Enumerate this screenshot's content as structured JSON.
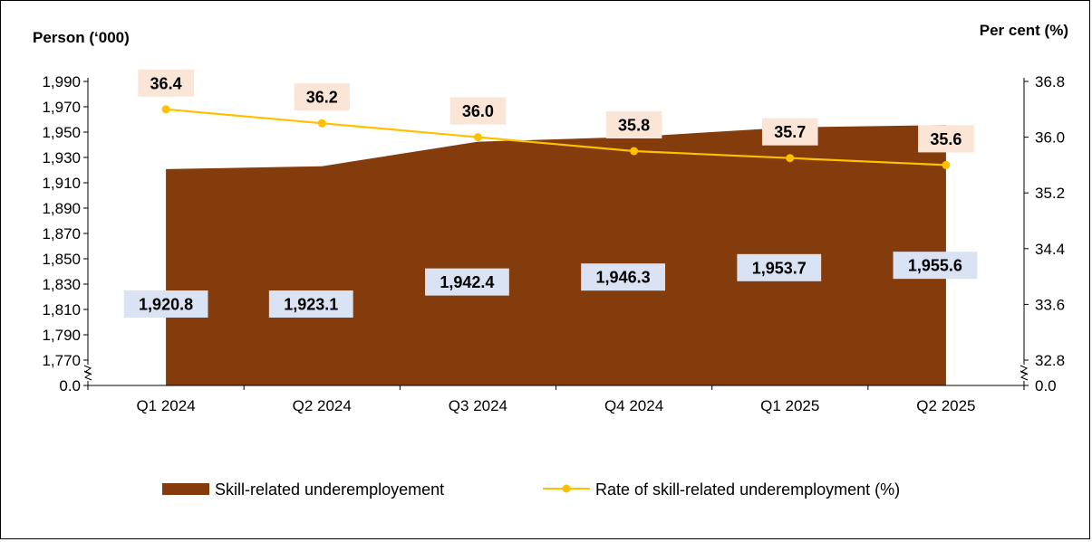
{
  "chart_data": {
    "type": "area+line",
    "categories": [
      "Q1 2024",
      "Q2 2024",
      "Q3 2024",
      "Q4 2024",
      "Q1 2025",
      "Q2 2025"
    ],
    "left_axis": {
      "label": "Person (‘000)",
      "ticks": [
        "0.0",
        "1,770",
        "1,790",
        "1,810",
        "1,830",
        "1,850",
        "1,870",
        "1,890",
        "1,910",
        "1,930",
        "1,950",
        "1,970",
        "1,990"
      ],
      "break": true,
      "ylim": [
        1770,
        1990
      ]
    },
    "right_axis": {
      "label": "Per cent (%)",
      "ticks": [
        "0.0",
        "32.8",
        "33.6",
        "34.4",
        "35.2",
        "36.0",
        "36.8"
      ],
      "break": true,
      "ylim": [
        32.8,
        36.8
      ]
    },
    "series": [
      {
        "name": "Skill-related underemployement",
        "type": "area",
        "axis": "left",
        "color": "#843C0C",
        "label_bg": "#DAE3F3",
        "values": [
          1920.8,
          1923.1,
          1942.4,
          1946.3,
          1953.7,
          1955.6
        ],
        "labels": [
          "1,920.8",
          "1,923.1",
          "1,942.4",
          "1,946.3",
          "1,953.7",
          "1,955.6"
        ]
      },
      {
        "name": "Rate of skill-related underemployment (%)",
        "type": "line",
        "axis": "right",
        "color": "#FFC000",
        "label_bg": "#FBE5D6",
        "values": [
          36.4,
          36.2,
          36.0,
          35.8,
          35.7,
          35.6
        ],
        "labels": [
          "36.4",
          "36.2",
          "36.0",
          "35.8",
          "35.7",
          "35.6"
        ]
      }
    ],
    "legend_position": "bottom"
  }
}
